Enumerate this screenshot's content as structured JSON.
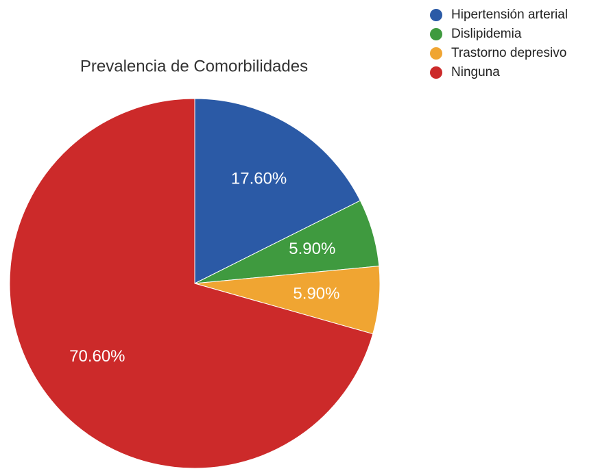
{
  "chart_data": {
    "type": "pie",
    "title": "Prevalencia de Comorbilidades",
    "categories": [
      "Hipertensión arterial",
      "Dislipidemia",
      "Trastorno depresivo",
      "Ninguna"
    ],
    "values": [
      17.6,
      5.9,
      5.9,
      70.6
    ],
    "value_labels": [
      "17.60%",
      "5.90%",
      "5.90%",
      "70.60%"
    ],
    "colors": [
      "#2b5aa6",
      "#3f9a3f",
      "#f0a532",
      "#cc2a2a"
    ],
    "legend": "top-right"
  }
}
